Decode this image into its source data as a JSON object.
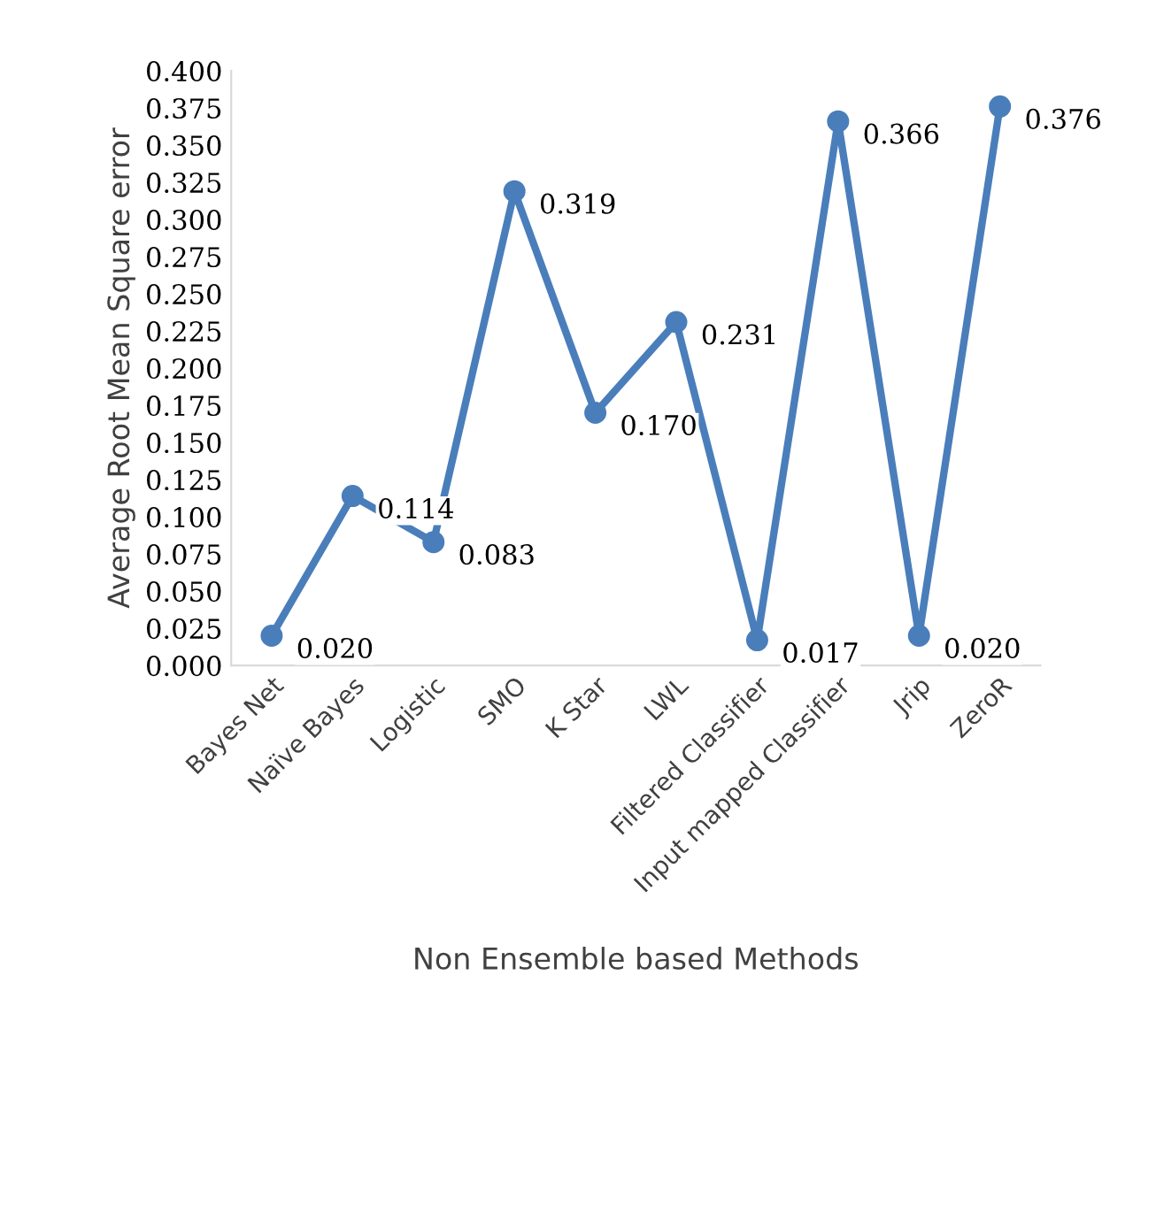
{
  "chart_data": {
    "type": "line",
    "xlabel": "Non Ensemble based Methods",
    "ylabel": "Average Root Mean Square error",
    "categories": [
      "Bayes Net",
      "Naïve Bayes",
      "Logistic",
      "SMO",
      "K Star",
      "LWL",
      "Filtered Classifier",
      "Input mapped Classifier",
      "Jrip",
      "ZeroR"
    ],
    "series": [
      {
        "color": "#4a7ebb",
        "values": [
          0.02,
          0.114,
          0.083,
          0.319,
          0.17,
          0.231,
          0.017,
          0.366,
          0.02,
          0.376
        ],
        "value_labels": [
          "0.020",
          "0.114",
          "0.083",
          "0.319",
          "0.170",
          "0.231",
          "0.017",
          "0.366",
          "0.020",
          "0.376"
        ]
      }
    ],
    "ylim": [
      0,
      0.4
    ],
    "yticks": [
      {
        "value": 0,
        "label": "0.000"
      },
      {
        "value": 0.025,
        "label": "0.025"
      },
      {
        "value": 0.05,
        "label": "0.050"
      },
      {
        "value": 0.075,
        "label": "0.075"
      },
      {
        "value": 0.1,
        "label": "0.100"
      },
      {
        "value": 0.125,
        "label": "0.125"
      },
      {
        "value": 0.15,
        "label": "0.150"
      },
      {
        "value": 0.175,
        "label": "0.175"
      },
      {
        "value": 0.2,
        "label": "0.200"
      },
      {
        "value": 0.225,
        "label": "0.225"
      },
      {
        "value": 0.25,
        "label": "0.250"
      },
      {
        "value": 0.275,
        "label": "0.275"
      },
      {
        "value": 0.3,
        "label": "0.300"
      },
      {
        "value": 0.325,
        "label": "0.325"
      },
      {
        "value": 0.35,
        "label": "0.350"
      },
      {
        "value": 0.375,
        "label": "0.375"
      },
      {
        "value": 0.4,
        "label": "0.400"
      }
    ],
    "grid": false,
    "legend": false,
    "marker": "circle",
    "line_style": "solid"
  }
}
